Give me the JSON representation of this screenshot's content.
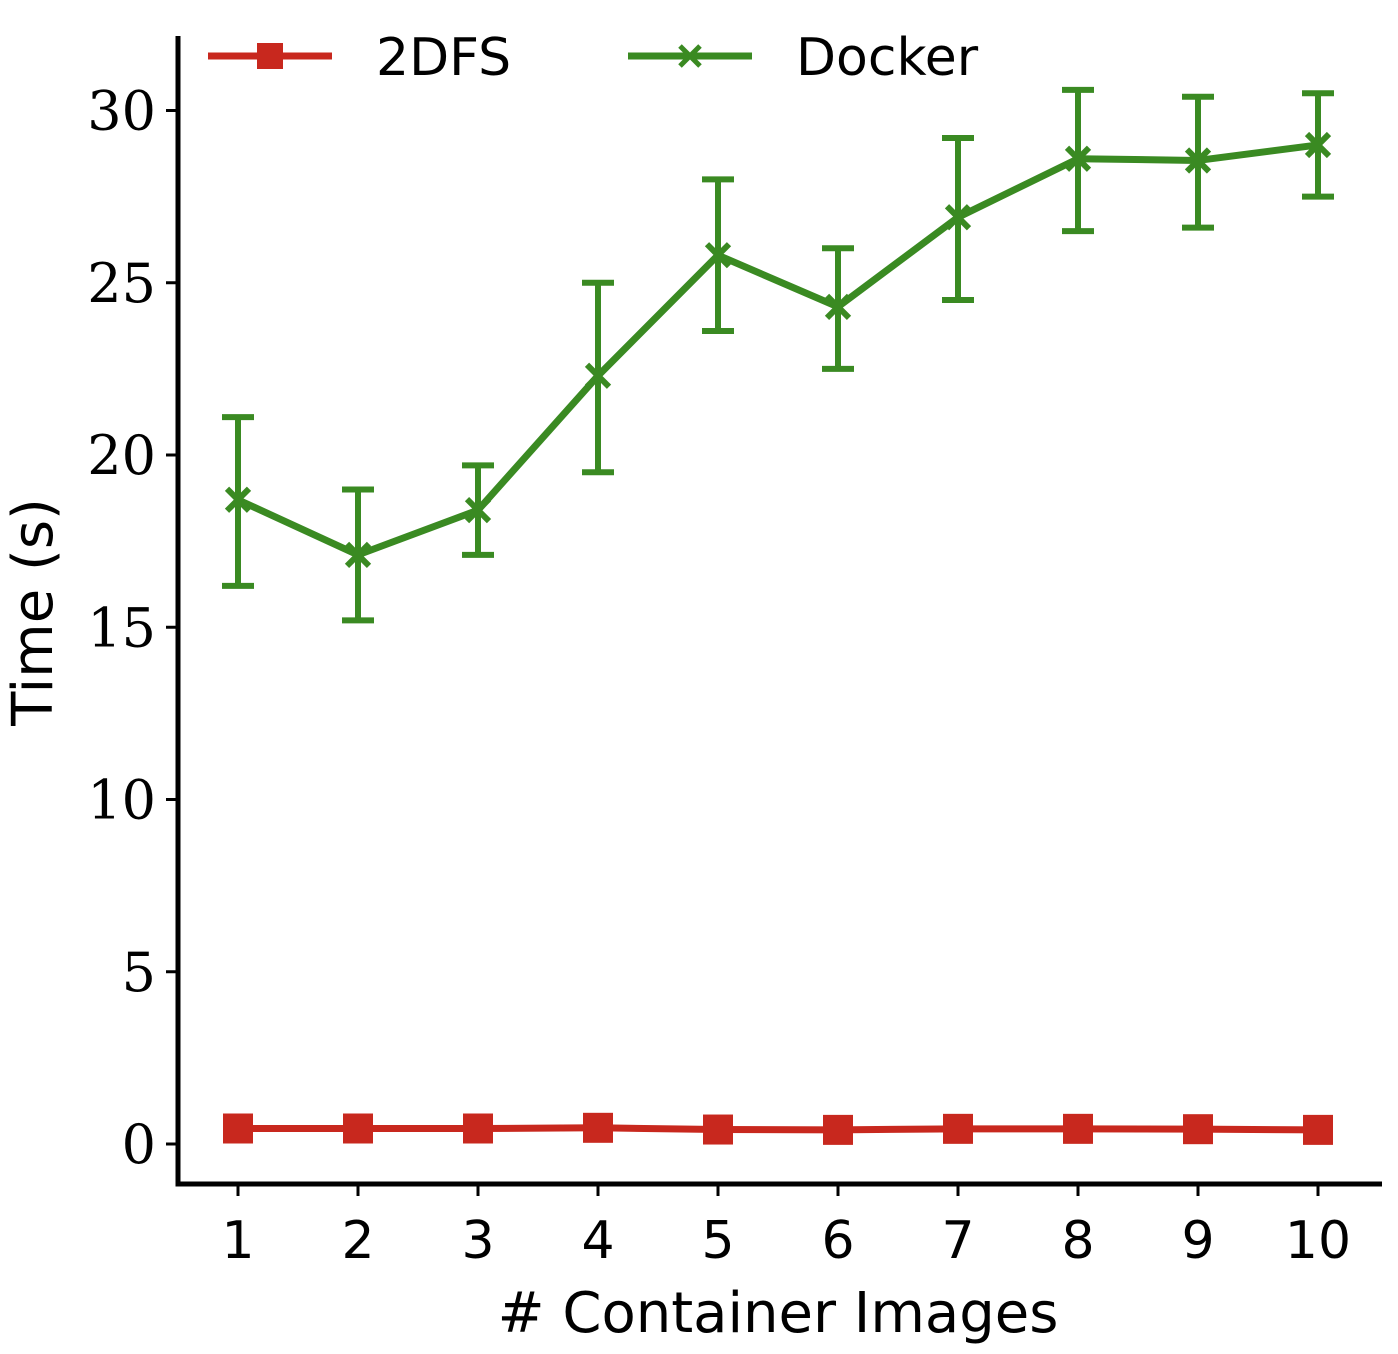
{
  "chart_data": {
    "type": "line",
    "title": "",
    "xlabel": "# Container Images",
    "ylabel": "Time (s)",
    "x": [
      1,
      2,
      3,
      4,
      5,
      6,
      7,
      8,
      9,
      10
    ],
    "xticks": [
      "1",
      "2",
      "3",
      "4",
      "5",
      "6",
      "7",
      "8",
      "9",
      "10"
    ],
    "yticks": [
      "0",
      "5",
      "10",
      "15",
      "20",
      "25",
      "30"
    ],
    "ylim": [
      -1,
      32
    ],
    "xlim": [
      0.5,
      10.5
    ],
    "grid": false,
    "legend_position": "top-left",
    "series": [
      {
        "name": "2DFS",
        "color": "#c8281e",
        "marker": "square",
        "values": [
          0.45,
          0.45,
          0.45,
          0.47,
          0.42,
          0.41,
          0.44,
          0.44,
          0.43,
          0.41
        ]
      },
      {
        "name": "Docker",
        "color": "#3a8a22",
        "marker": "x",
        "values": [
          18.7,
          17.1,
          18.4,
          22.3,
          25.8,
          24.3,
          26.9,
          28.6,
          28.55,
          29.0
        ],
        "err_low": [
          16.2,
          15.2,
          17.1,
          19.5,
          23.6,
          22.5,
          24.5,
          26.5,
          26.6,
          27.5
        ],
        "err_high": [
          21.1,
          19.0,
          19.7,
          25.0,
          28.0,
          26.0,
          29.2,
          30.6,
          30.4,
          30.5
        ]
      }
    ]
  }
}
